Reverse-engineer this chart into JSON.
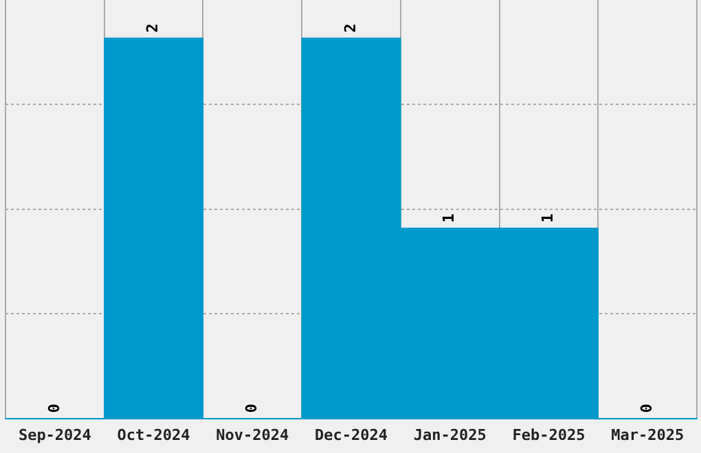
{
  "chart_data": {
    "type": "bar",
    "categories": [
      "Sep-2024",
      "Oct-2024",
      "Nov-2024",
      "Dec-2024",
      "Jan-2025",
      "Feb-2025",
      "Mar-2025"
    ],
    "values": [
      0,
      2,
      0,
      2,
      1,
      1,
      0
    ],
    "color": "#0099cc",
    "ylim": [
      0,
      2.2
    ],
    "yticks": [
      {
        "value": 0.55,
        "label": null
      },
      {
        "value": 1.1,
        "label": null
      },
      {
        "value": 1.65,
        "label": null
      }
    ],
    "tick_labels": "x",
    "grid": true,
    "legend": false,
    "data_labels": true
  }
}
